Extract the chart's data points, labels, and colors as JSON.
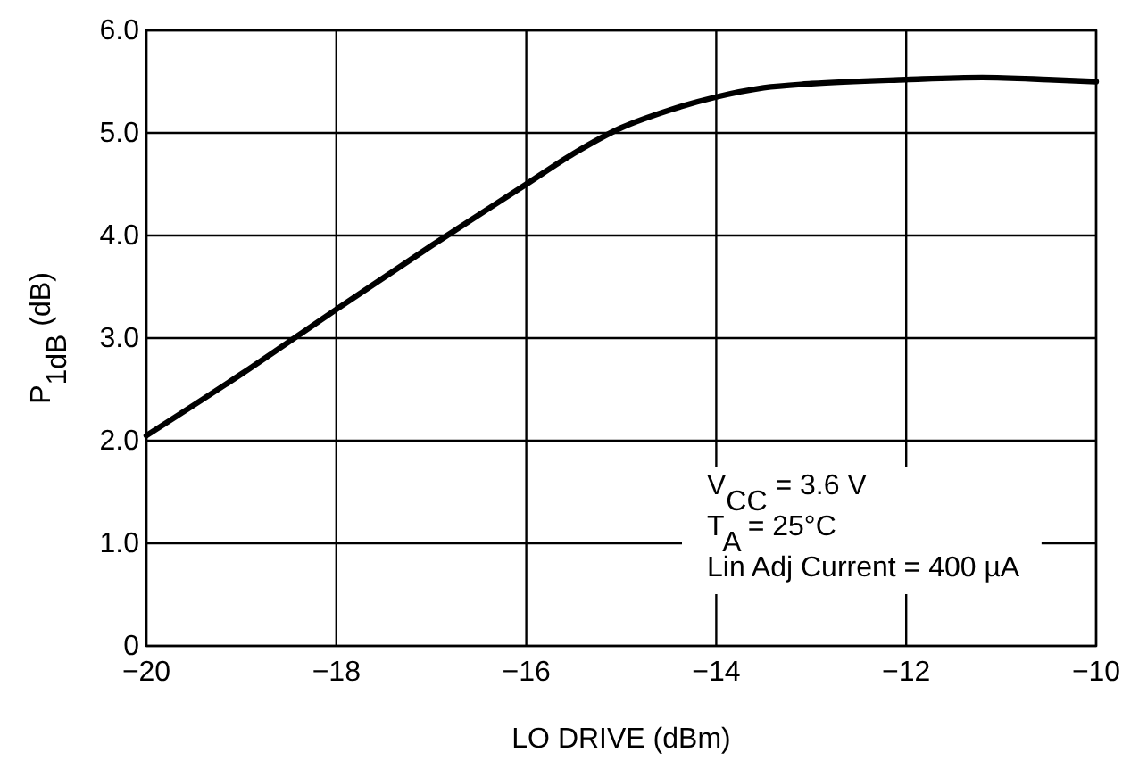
{
  "chart_data": {
    "type": "line",
    "xlabel": "LO DRIVE (dBm)",
    "ylabel": "P$_{1dB}$ (dB)",
    "x": [
      -20,
      -19,
      -18,
      -17,
      -16,
      -15.5,
      -15,
      -14.5,
      -14,
      -13.5,
      -13,
      -12,
      -11.2,
      -10.5,
      -10
    ],
    "series": [
      {
        "color": "#000000",
        "values": [
          2.05,
          2.65,
          3.28,
          3.9,
          4.5,
          4.8,
          5.05,
          5.22,
          5.35,
          5.44,
          5.48,
          5.52,
          5.54,
          5.52,
          5.5
        ]
      }
    ],
    "xlim": [
      -20,
      -10
    ],
    "ylim": [
      0,
      6
    ],
    "xticks": [
      {
        "value": -20,
        "label": "−20"
      },
      {
        "value": -18,
        "label": "−18"
      },
      {
        "value": -16,
        "label": "−16"
      },
      {
        "value": -14,
        "label": "−14"
      },
      {
        "value": -12,
        "label": "−12"
      },
      {
        "value": -10,
        "label": "−10"
      }
    ],
    "yticks": [
      0,
      {
        "value": 1,
        "label": "1.0"
      },
      {
        "value": 2,
        "label": "2.0"
      },
      {
        "value": 3,
        "label": "3.0"
      },
      {
        "value": 4,
        "label": "4.0"
      },
      {
        "value": 5,
        "label": "5.0"
      },
      {
        "value": 6,
        "label": "6.0"
      }
    ],
    "grid": true,
    "marker": "none",
    "line_style": "solid",
    "annotations": [
      "V$_{CC}$ = 3.6 V",
      "T$_{A}$ = 25°C",
      "Lin Adj Current = 400 µA"
    ]
  }
}
